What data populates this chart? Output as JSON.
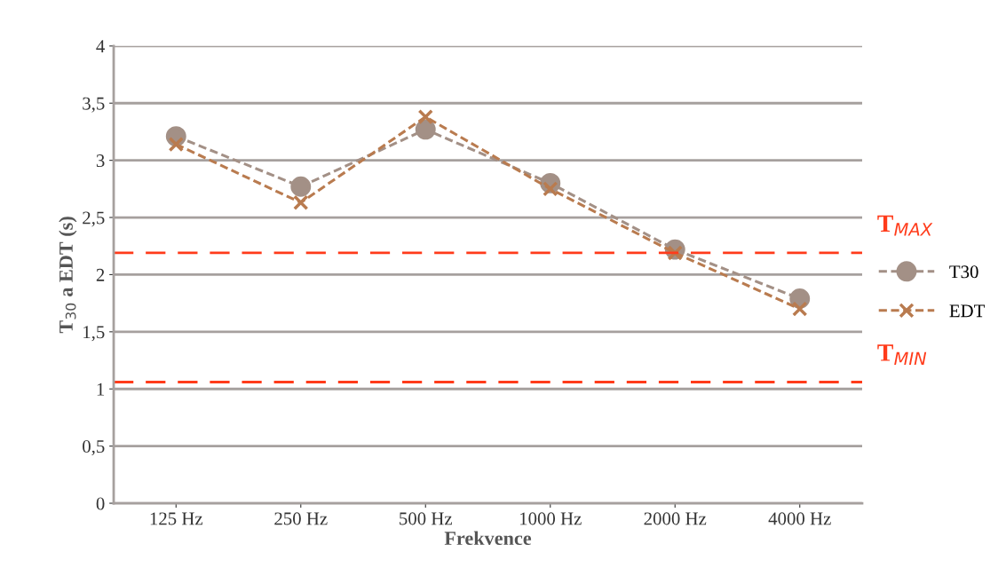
{
  "chart_data": {
    "type": "line",
    "xlabel": "Frekvence",
    "ylabel": "T$_{30}$ a EDT (s)",
    "categories": [
      "125 Hz",
      "250 Hz",
      "500 Hz",
      "1000 Hz",
      "2000 Hz",
      "4000 Hz"
    ],
    "series": [
      {
        "name": "T30",
        "color": "#a39086",
        "marker": "circle",
        "values": [
          3.21,
          2.77,
          3.27,
          2.8,
          2.22,
          1.79
        ]
      },
      {
        "name": "EDT",
        "color": "#b97b4f",
        "marker": "cross",
        "values": [
          3.14,
          2.63,
          3.38,
          2.75,
          2.19,
          1.7
        ]
      }
    ],
    "ylim": [
      0,
      4
    ],
    "yticks": [
      0,
      {
        "value": 0.5,
        "label": "0,5"
      },
      1,
      {
        "value": 1.5,
        "label": "1,5"
      },
      2,
      {
        "value": 2.5,
        "label": "2,5"
      },
      3,
      {
        "value": 3.5,
        "label": "3,5"
      },
      4
    ],
    "ref_lines": [
      {
        "axis": "y",
        "value": 2.19,
        "label": "T$_{MAX}$",
        "color": "#ff3b1a",
        "line_style": "dashed"
      },
      {
        "axis": "y",
        "value": 1.06,
        "label": "T$_{MIN}$",
        "color": "#ff3b1a",
        "line_style": "dashed"
      }
    ],
    "grid": "y",
    "legend": "right",
    "line_style": "dashed"
  }
}
